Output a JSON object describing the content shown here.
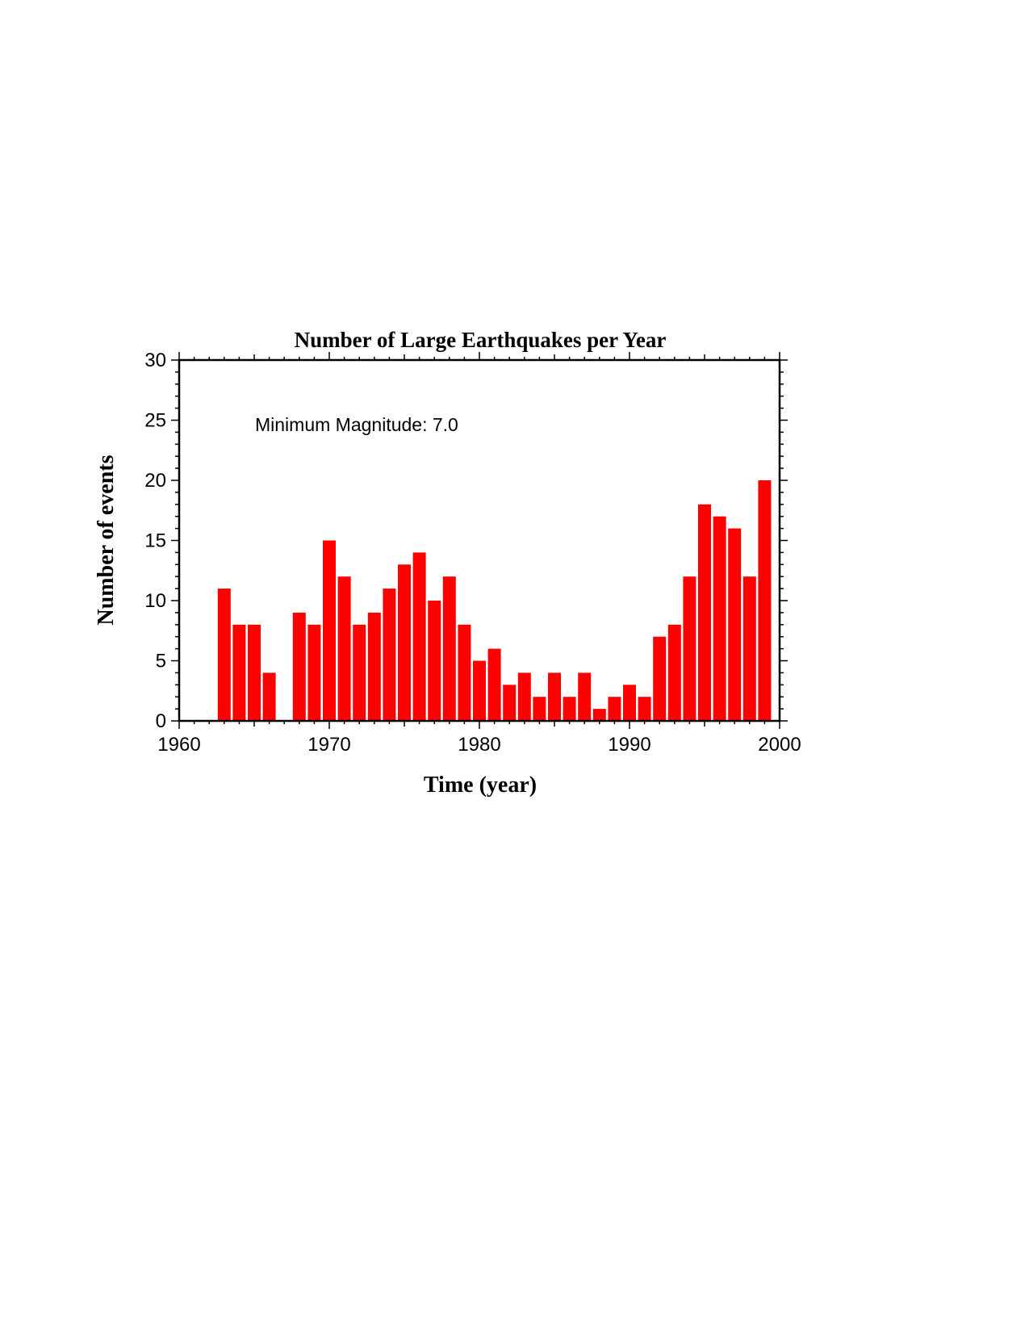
{
  "chart_data": {
    "type": "bar",
    "title": "Number of Large Earthquakes per Year",
    "xlabel": "Time (year)",
    "ylabel": "Number of events",
    "annotation": "Minimum Magnitude: 7.0",
    "xlim": [
      1960,
      2000
    ],
    "ylim": [
      0,
      30
    ],
    "x_ticks": [
      1960,
      1970,
      1980,
      1990,
      2000
    ],
    "y_ticks": [
      0,
      5,
      10,
      15,
      20,
      25,
      30
    ],
    "grid": false,
    "legend": "none",
    "bar_color": "#ff0000",
    "x": [
      1963,
      1964,
      1965,
      1966,
      1968,
      1969,
      1970,
      1971,
      1972,
      1973,
      1974,
      1975,
      1976,
      1977,
      1978,
      1979,
      1980,
      1981,
      1982,
      1983,
      1984,
      1985,
      1986,
      1987,
      1988,
      1989,
      1990,
      1991,
      1992,
      1993,
      1994,
      1995,
      1996,
      1997,
      1998,
      1999
    ],
    "values": [
      11,
      8,
      8,
      4,
      9,
      8,
      15,
      12,
      8,
      9,
      11,
      13,
      14,
      10,
      12,
      8,
      5,
      6,
      3,
      4,
      2,
      4,
      2,
      4,
      1,
      2,
      3,
      2,
      7,
      8,
      12,
      18,
      17,
      16,
      12,
      20
    ]
  }
}
